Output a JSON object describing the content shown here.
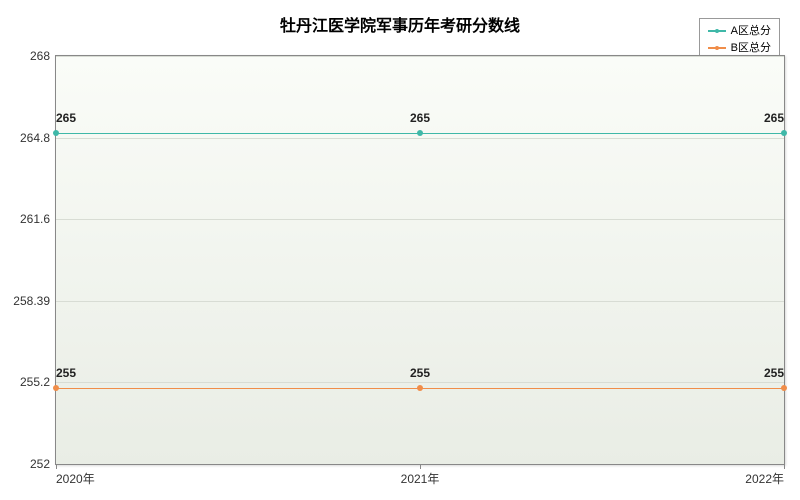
{
  "chart": {
    "type": "line",
    "title": "牡丹江医学院军事历年考研分数线",
    "title_fontsize": 16,
    "background_color": "#f3f6f0",
    "plot_bg_gradient_top": "#fafcf8",
    "plot_bg_gradient_bottom": "#e9ede5",
    "grid_color": "#d8dcd4",
    "border_color": "#888888",
    "ylim": [
      252,
      268
    ],
    "yticks": [
      252,
      255.2,
      258.39,
      261.6,
      264.8,
      268
    ],
    "ytick_labels": [
      "252",
      "255.2",
      "258.39",
      "261.6",
      "264.8",
      "268"
    ],
    "xcategories": [
      "2020年",
      "2021年",
      "2022年"
    ],
    "x_positions_pct": [
      0,
      50,
      100
    ],
    "series": [
      {
        "name": "A区总分",
        "color": "#3fb8a8",
        "values": [
          265,
          265,
          265
        ],
        "labels": [
          "265",
          "265",
          "265"
        ]
      },
      {
        "name": "B区总分",
        "color": "#f08d49",
        "values": [
          255,
          255,
          255
        ],
        "labels": [
          "255",
          "255",
          "255"
        ]
      }
    ],
    "label_fontsize": 12,
    "legend_fontsize": 11
  }
}
